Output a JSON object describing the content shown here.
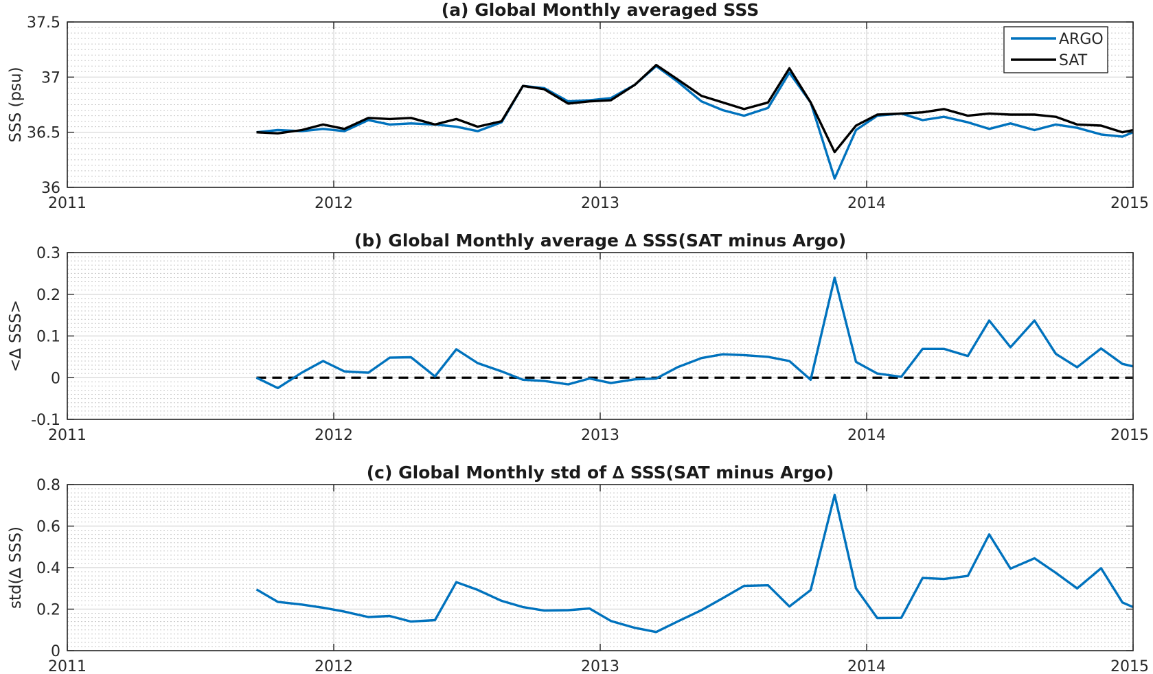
{
  "chart_data": [
    {
      "type": "line",
      "title": "(a) Global Monthly averaged SSS",
      "xlabel": "",
      "ylabel": "SSS (psu)",
      "xlim": [
        2011,
        2015
      ],
      "ylim": [
        36,
        37.5
      ],
      "x_ticks": [
        "2011",
        "2012",
        "2013",
        "2014",
        "2015"
      ],
      "y_ticks": [
        "36",
        "36.5",
        "37",
        "37.5"
      ],
      "grid": true,
      "legend": {
        "placement": "top-right",
        "entries": [
          "ARGO",
          "SAT"
        ]
      },
      "x": [
        2011.71,
        2011.79,
        2011.88,
        2011.96,
        2012.04,
        2012.13,
        2012.21,
        2012.29,
        2012.38,
        2012.46,
        2012.54,
        2012.63,
        2012.71,
        2012.79,
        2012.88,
        2012.96,
        2013.04,
        2013.13,
        2013.21,
        2013.29,
        2013.38,
        2013.46,
        2013.54,
        2013.63,
        2013.71,
        2013.79,
        2013.88,
        2013.96,
        2014.04,
        2014.13,
        2014.21,
        2014.29,
        2014.38,
        2014.46,
        2014.54,
        2014.63,
        2014.71,
        2014.79,
        2014.88,
        2014.96,
        2015.0
      ],
      "series": [
        {
          "name": "ARGO",
          "color": "#0072bd",
          "values": [
            36.5,
            36.52,
            36.51,
            36.53,
            36.51,
            36.61,
            36.57,
            36.58,
            36.57,
            36.55,
            36.51,
            36.59,
            36.92,
            36.9,
            36.78,
            36.79,
            36.81,
            36.93,
            37.1,
            36.96,
            36.78,
            36.7,
            36.65,
            36.72,
            37.04,
            36.77,
            36.08,
            36.52,
            36.65,
            36.67,
            36.61,
            36.64,
            36.59,
            36.53,
            36.58,
            36.52,
            36.57,
            36.54,
            36.48,
            36.46,
            36.5
          ]
        },
        {
          "name": "SAT",
          "color": "#000000",
          "values": [
            36.5,
            36.49,
            36.52,
            36.57,
            36.53,
            36.63,
            36.62,
            36.63,
            36.57,
            36.62,
            36.55,
            36.6,
            36.92,
            36.89,
            36.76,
            36.78,
            36.79,
            36.93,
            37.11,
            36.98,
            36.83,
            36.77,
            36.71,
            36.77,
            37.08,
            36.77,
            36.32,
            36.56,
            36.66,
            36.67,
            36.68,
            36.71,
            36.65,
            36.67,
            36.66,
            36.66,
            36.64,
            36.57,
            36.56,
            36.5,
            36.52
          ]
        }
      ]
    },
    {
      "type": "line",
      "title": "(b) Global Monthly average ∆ SSS(SAT minus Argo)",
      "xlabel": "",
      "ylabel": "<∆ SSS>",
      "xlim": [
        2011,
        2015
      ],
      "ylim": [
        -0.1,
        0.3
      ],
      "x_ticks": [
        "2011",
        "2012",
        "2013",
        "2014",
        "2015"
      ],
      "y_ticks": [
        "-0.1",
        "0",
        "0.1",
        "0.2",
        "0.3"
      ],
      "grid": true,
      "reference_line": {
        "y": 0,
        "style": "dashed",
        "color": "#000000",
        "x_range": [
          2011.71,
          2015.0
        ]
      },
      "x": [
        2011.71,
        2011.79,
        2011.88,
        2011.96,
        2012.04,
        2012.13,
        2012.21,
        2012.29,
        2012.38,
        2012.46,
        2012.54,
        2012.63,
        2012.71,
        2012.79,
        2012.88,
        2012.96,
        2013.04,
        2013.13,
        2013.21,
        2013.29,
        2013.38,
        2013.46,
        2013.54,
        2013.63,
        2013.71,
        2013.79,
        2013.88,
        2013.96,
        2014.04,
        2014.13,
        2014.21,
        2014.29,
        2014.38,
        2014.46,
        2014.54,
        2014.63,
        2014.71,
        2014.79,
        2014.88,
        2014.96,
        2015.0
      ],
      "series": [
        {
          "color": "#0072bd",
          "values": [
            0.0,
            -0.025,
            0.012,
            0.04,
            0.015,
            0.012,
            0.048,
            0.049,
            0.003,
            0.068,
            0.035,
            0.015,
            -0.005,
            -0.008,
            -0.016,
            -0.002,
            -0.013,
            -0.004,
            -0.002,
            0.025,
            0.047,
            0.056,
            0.054,
            0.05,
            0.04,
            -0.005,
            0.24,
            0.038,
            0.01,
            0.002,
            0.069,
            0.069,
            0.052,
            0.137,
            0.073,
            0.137,
            0.057,
            0.025,
            0.07,
            0.033,
            0.027
          ]
        }
      ]
    },
    {
      "type": "line",
      "title": "(c) Global Monthly std of ∆ SSS(SAT minus Argo)",
      "xlabel": "",
      "ylabel": "std(∆ SSS)",
      "xlim": [
        2011,
        2015
      ],
      "ylim": [
        0,
        0.8
      ],
      "x_ticks": [
        "2011",
        "2012",
        "2013",
        "2014",
        "2015"
      ],
      "y_ticks": [
        "0",
        "0.2",
        "0.4",
        "0.6",
        "0.8"
      ],
      "grid": true,
      "x": [
        2011.71,
        2011.79,
        2011.88,
        2011.96,
        2012.04,
        2012.13,
        2012.21,
        2012.29,
        2012.38,
        2012.46,
        2012.54,
        2012.63,
        2012.71,
        2012.79,
        2012.88,
        2012.96,
        2013.04,
        2013.13,
        2013.21,
        2013.29,
        2013.38,
        2013.46,
        2013.54,
        2013.63,
        2013.71,
        2013.79,
        2013.88,
        2013.96,
        2014.04,
        2014.13,
        2014.21,
        2014.29,
        2014.38,
        2014.46,
        2014.54,
        2014.63,
        2014.71,
        2014.79,
        2014.88,
        2014.96,
        2015.0
      ],
      "series": [
        {
          "color": "#0072bd",
          "values": [
            0.295,
            0.235,
            0.222,
            0.207,
            0.188,
            0.162,
            0.167,
            0.14,
            0.147,
            0.33,
            0.293,
            0.24,
            0.21,
            0.193,
            0.195,
            0.203,
            0.143,
            0.11,
            0.09,
            0.14,
            0.195,
            0.253,
            0.312,
            0.315,
            0.213,
            0.292,
            0.75,
            0.3,
            0.157,
            0.158,
            0.35,
            0.345,
            0.36,
            0.56,
            0.395,
            0.445,
            0.375,
            0.3,
            0.397,
            0.232,
            0.21
          ]
        }
      ]
    }
  ]
}
